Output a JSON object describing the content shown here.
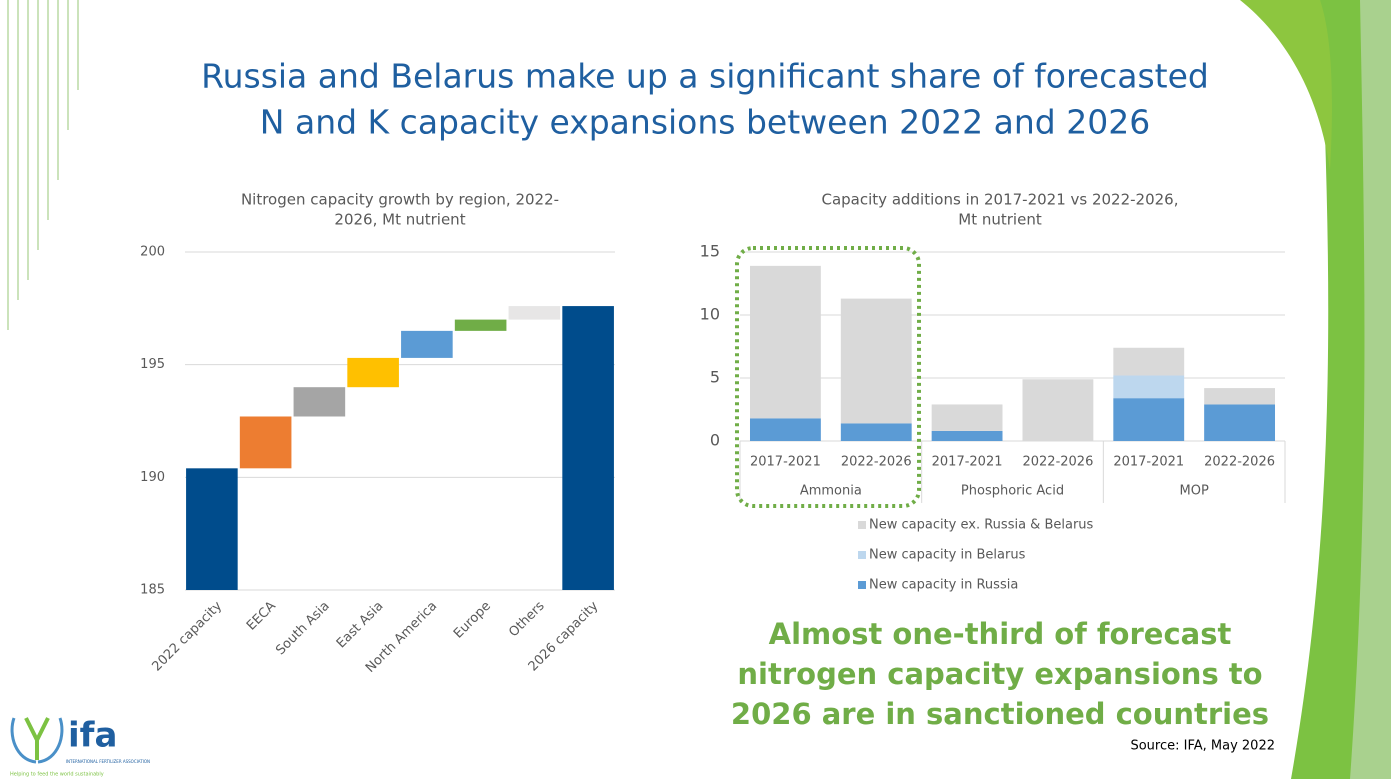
{
  "header": {
    "title": [
      "Russia and Belarus make up a significant share of forecasted",
      "N and K capacity expansions between 2022 and 2026"
    ]
  },
  "chart_data": [
    {
      "type": "waterfall",
      "title": [
        "Nitrogen capacity growth by region, 2022-",
        "2026, Mt nutrient"
      ],
      "categories": [
        "2022 capacity",
        "EECA",
        "South Asia",
        "East Asia",
        "North America",
        "Europe",
        "Others",
        "2026 capacity"
      ],
      "values": [
        190.4,
        2.3,
        1.3,
        1.3,
        1.2,
        0.5,
        0.6,
        197.6
      ],
      "measure": [
        "absolute",
        "relative",
        "relative",
        "relative",
        "relative",
        "relative",
        "relative",
        "total"
      ],
      "colors": [
        "#004c8c",
        "#ed7d31",
        "#a5a5a5",
        "#ffc000",
        "#5b9bd5",
        "#70ad47",
        "#e7e6e6",
        "#004c8c"
      ],
      "ylim": [
        185,
        200
      ],
      "yticks": [
        185,
        190,
        195,
        200
      ],
      "grid": true
    },
    {
      "type": "stacked_bar",
      "title": [
        "Capacity additions in 2017-2021 vs 2022-2026,",
        "Mt nutrient"
      ],
      "categories": [
        "2017-2021",
        "2022-2026",
        "2017-2021",
        "2022-2026",
        "2017-2021",
        "2022-2026"
      ],
      "groups": [
        "Ammonia",
        "Phosphoric Acid",
        "MOP"
      ],
      "series": [
        {
          "name": "New capacity in Russia",
          "color": "#5b9bd5",
          "values": [
            1.8,
            1.4,
            0.8,
            0,
            3.4,
            2.9
          ]
        },
        {
          "name": "New capacity in Belarus",
          "color": "#bdd7ee",
          "values": [
            0,
            0,
            0,
            0,
            1.8,
            0
          ]
        },
        {
          "name": "New capacity ex. Russia & Belarus",
          "color": "#d9d9d9",
          "values": [
            12.1,
            9.9,
            2.1,
            4.9,
            2.2,
            1.3
          ]
        }
      ],
      "ylim": [
        0,
        15
      ],
      "yticks": [
        0,
        5,
        10,
        15
      ],
      "grid": true,
      "legend": "bottom"
    }
  ],
  "callout": [
    "Almost one-third of forecast",
    "nitrogen capacity expansions to",
    "2026 are in sanctioned countries"
  ],
  "source": "Source: IFA, May 2022",
  "logo": {
    "name": "ifa",
    "org": "INTERNATIONAL FERTILIZER ASSOCIATION",
    "tagline": "Helping to feed the world sustainably"
  }
}
